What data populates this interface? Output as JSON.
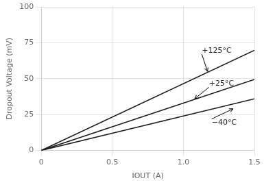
{
  "chart_data": {
    "type": "line",
    "x": [
      0,
      1.5
    ],
    "series": [
      {
        "color": "#1a1a1a",
        "values": [
          0,
          69.75
        ]
      },
      {
        "color": "#1a1a1a",
        "values": [
          0,
          49.5
        ]
      },
      {
        "color": "#1a1a1a",
        "values": [
          0,
          36
        ]
      }
    ],
    "xlabel": "IOUT (A)",
    "ylabel": "Dropout Voltage (mV)",
    "xlim": [
      0,
      1.5
    ],
    "ylim": [
      0,
      100
    ],
    "xticks": [
      0,
      0.5,
      {
        "value": 1.0,
        "label": "1.0"
      },
      1.5
    ],
    "yticks": [
      0,
      25,
      50,
      75,
      100
    ],
    "grid": true,
    "annotations": [
      {
        "text": "+125°C",
        "x": 1.17,
        "y": 55,
        "text_x": 1.13,
        "text_y": 67
      },
      {
        "text": "+25°C",
        "x": 1.08,
        "y": 36,
        "text_x": 1.18,
        "text_y": 44
      },
      {
        "text": "−40°C",
        "x": 1.35,
        "y": 29,
        "text_x": 1.2,
        "text_y": 22
      }
    ]
  }
}
